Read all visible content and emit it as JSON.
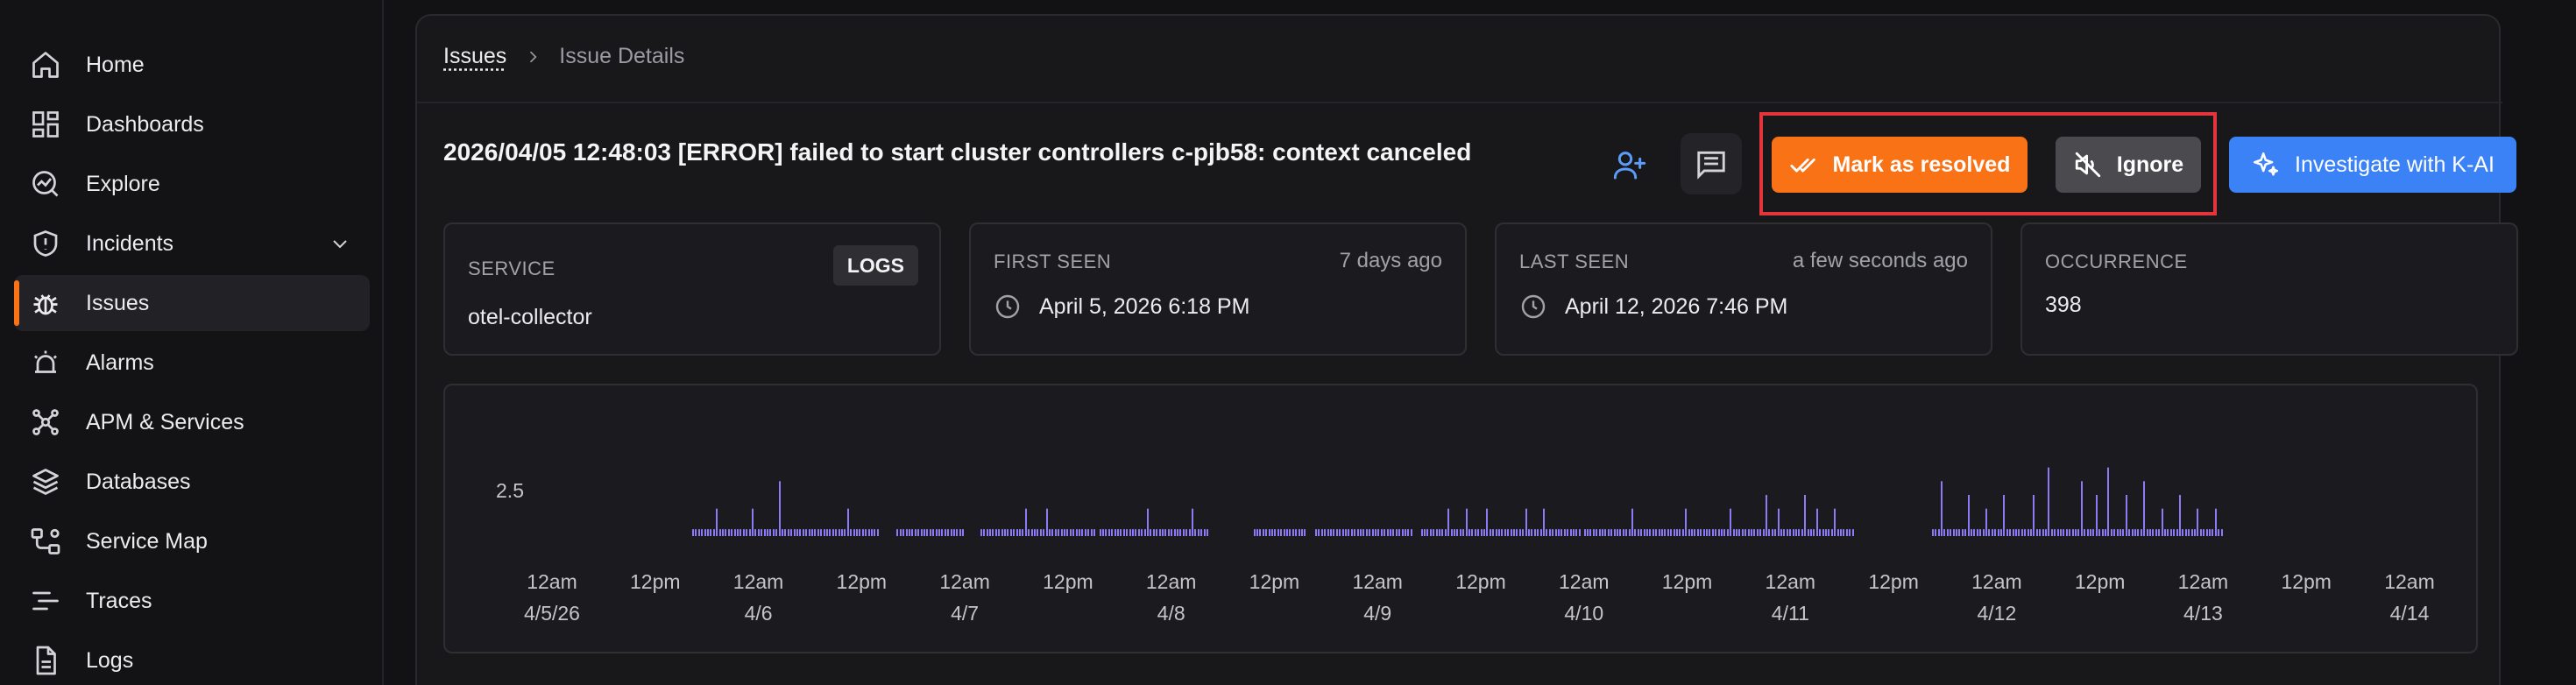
{
  "sidebar": {
    "items": [
      {
        "label": "Home",
        "icon": "home-icon"
      },
      {
        "label": "Dashboards",
        "icon": "dashboard-icon"
      },
      {
        "label": "Explore",
        "icon": "explore-icon"
      },
      {
        "label": "Incidents",
        "icon": "shield-icon",
        "expandable": true
      },
      {
        "label": "Issues",
        "icon": "bug-icon",
        "active": true
      },
      {
        "label": "Alarms",
        "icon": "alarm-icon"
      },
      {
        "label": "APM & Services",
        "icon": "network-icon"
      },
      {
        "label": "Databases",
        "icon": "database-icon"
      },
      {
        "label": "Service Map",
        "icon": "map-icon"
      },
      {
        "label": "Traces",
        "icon": "traces-icon"
      },
      {
        "label": "Logs",
        "icon": "file-icon"
      }
    ],
    "accent": "#f97316"
  },
  "breadcrumb": {
    "root": "Issues",
    "current": "Issue Details"
  },
  "issue": {
    "title": "2026/04/05 12:48:03 [ERROR] failed to start cluster controllers c-pjb58: context canceled"
  },
  "actions": {
    "resolve_label": "Mark as resolved",
    "ignore_label": "Ignore",
    "investigate_label": "Investigate with K-AI",
    "resolve_color": "#f97316",
    "investigate_color": "#3b82f6"
  },
  "cards": {
    "service": {
      "label": "SERVICE",
      "value": "otel-collector",
      "badge": "LOGS"
    },
    "first_seen": {
      "label": "FIRST SEEN",
      "relative": "7 days ago",
      "value": "April 5, 2026 6:18 PM"
    },
    "last_seen": {
      "label": "LAST SEEN",
      "relative": "a few seconds ago",
      "value": "April 12, 2026 7:46 PM"
    },
    "occurrence": {
      "label": "OCCURRENCE",
      "value": "398"
    }
  },
  "chart_data": {
    "type": "bar",
    "bar_color": "#8b7cf6",
    "y_ticks": [
      "2.5"
    ],
    "x_ticks": [
      {
        "time": "12am",
        "date": "4/5/26"
      },
      {
        "time": "12pm",
        "date": ""
      },
      {
        "time": "12am",
        "date": "4/6"
      },
      {
        "time": "12pm",
        "date": ""
      },
      {
        "time": "12am",
        "date": "4/7"
      },
      {
        "time": "12pm",
        "date": ""
      },
      {
        "time": "12am",
        "date": "4/8"
      },
      {
        "time": "12pm",
        "date": ""
      },
      {
        "time": "12am",
        "date": "4/9"
      },
      {
        "time": "12pm",
        "date": ""
      },
      {
        "time": "12am",
        "date": "4/10"
      },
      {
        "time": "12pm",
        "date": ""
      },
      {
        "time": "12am",
        "date": "4/11"
      },
      {
        "time": "12pm",
        "date": ""
      },
      {
        "time": "12am",
        "date": "4/12"
      },
      {
        "time": "12pm",
        "date": ""
      },
      {
        "time": "12am",
        "date": "4/13"
      },
      {
        "time": "12pm",
        "date": ""
      },
      {
        "time": "12am",
        "date": "4/14"
      }
    ],
    "x_range_hours": [
      0,
      216
    ],
    "bursts": [
      {
        "start_hour": 18.3,
        "end_hour": 39.5,
        "tall": [
          {
            "hour": 21,
            "value": 2
          },
          {
            "hour": 25,
            "value": 2
          },
          {
            "hour": 28,
            "value": 4
          },
          {
            "hour": 33,
            "value": 2
          },
          {
            "hour": 36,
            "value": 2
          }
        ]
      },
      {
        "start_hour": 41.5,
        "end_hour": 49,
        "tall": [
          {
            "hour": 45,
            "value": 2
          }
        ]
      },
      {
        "start_hour": 51,
        "end_hour": 64,
        "tall": [
          {
            "hour": 52.5,
            "value": 2
          },
          {
            "hour": 56,
            "value": 2
          },
          {
            "hour": 58.5,
            "value": 2
          },
          {
            "hour": 61,
            "value": 2
          }
        ]
      },
      {
        "start_hour": 64.5,
        "end_hour": 77,
        "tall": [
          {
            "hour": 70,
            "value": 2
          },
          {
            "hour": 75,
            "value": 2
          }
        ]
      },
      {
        "start_hour": 82,
        "end_hour": 88,
        "tall": []
      },
      {
        "start_hour": 89,
        "end_hour": 100,
        "tall": []
      },
      {
        "start_hour": 101,
        "end_hour": 119,
        "tall": [
          {
            "hour": 104,
            "value": 2
          },
          {
            "hour": 106,
            "value": 2
          },
          {
            "hour": 108.5,
            "value": 2
          },
          {
            "hour": 111,
            "value": 2
          },
          {
            "hour": 113,
            "value": 2
          },
          {
            "hour": 115,
            "value": 2
          },
          {
            "hour": 117,
            "value": 2
          }
        ]
      },
      {
        "start_hour": 119.5,
        "end_hour": 150,
        "tall": [
          {
            "hour": 125,
            "value": 2
          },
          {
            "hour": 131,
            "value": 2
          },
          {
            "hour": 136,
            "value": 2
          },
          {
            "hour": 140,
            "value": 3
          },
          {
            "hour": 141.5,
            "value": 2
          },
          {
            "hour": 143,
            "value": 4
          },
          {
            "hour": 144.5,
            "value": 3
          },
          {
            "hour": 146,
            "value": 2
          },
          {
            "hour": 148,
            "value": 2
          }
        ]
      },
      {
        "start_hour": 159,
        "end_hour": 192,
        "tall": [
          {
            "hour": 160,
            "value": 4
          },
          {
            "hour": 163,
            "value": 3
          },
          {
            "hour": 165,
            "value": 2
          },
          {
            "hour": 167,
            "value": 3
          },
          {
            "hour": 169,
            "value": 4
          },
          {
            "hour": 170.5,
            "value": 3
          },
          {
            "hour": 172,
            "value": 5
          },
          {
            "hour": 174,
            "value": 3
          },
          {
            "hour": 176,
            "value": 4
          },
          {
            "hour": 177.5,
            "value": 3
          },
          {
            "hour": 179,
            "value": 5
          },
          {
            "hour": 181,
            "value": 3
          },
          {
            "hour": 183,
            "value": 4
          },
          {
            "hour": 185,
            "value": 2
          },
          {
            "hour": 187,
            "value": 3
          },
          {
            "hour": 189,
            "value": 2
          },
          {
            "hour": 191,
            "value": 2
          }
        ]
      }
    ],
    "base_value": 0.5,
    "y_max": 6
  }
}
